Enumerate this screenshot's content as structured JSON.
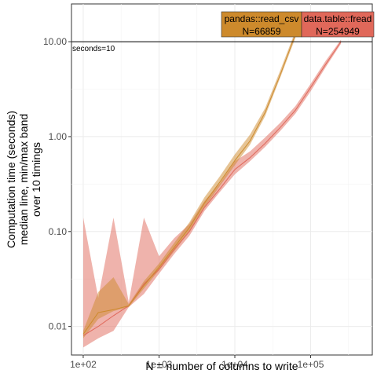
{
  "chart_data": {
    "type": "line",
    "xlabel": "N = number of columns to write",
    "ylabel_lines": [
      "Computation time (seconds)",
      "median line, min/max band",
      "over 10 timings"
    ],
    "xscale": "log10",
    "yscale": "log10",
    "xlim": [
      70,
      650000
    ],
    "ylim": [
      0.005,
      25
    ],
    "x_ticks": [
      {
        "value": 100,
        "label": "1e+02"
      },
      {
        "value": 1000,
        "label": "1e+03"
      },
      {
        "value": 10000,
        "label": "1e+04"
      },
      {
        "value": 100000,
        "label": "1e+05"
      }
    ],
    "y_ticks": [
      {
        "value": 0.01,
        "label": "0.01"
      },
      {
        "value": 0.1,
        "label": "0.10"
      },
      {
        "value": 1,
        "label": "1.00"
      },
      {
        "value": 10,
        "label": "10.00"
      }
    ],
    "grid": true,
    "reference_line": {
      "y": 10,
      "label": "seconds=10"
    },
    "series": [
      {
        "name": "pandas::read_csv",
        "color": "#cd8a2c",
        "x": [
          100,
          158,
          251,
          398,
          631,
          1000,
          1585,
          2512,
          3981,
          6310,
          10000,
          15849,
          25119,
          39811,
          63096
        ],
        "median": [
          0.0083,
          0.014,
          0.015,
          0.0165,
          0.027,
          0.042,
          0.068,
          0.11,
          0.2,
          0.33,
          0.56,
          0.9,
          1.8,
          4.5,
          12.0
        ],
        "min": [
          0.0075,
          0.012,
          0.0145,
          0.016,
          0.025,
          0.039,
          0.062,
          0.1,
          0.18,
          0.3,
          0.5,
          0.82,
          1.65,
          4.2,
          11.0
        ],
        "max": [
          0.009,
          0.023,
          0.033,
          0.0172,
          0.03,
          0.046,
          0.076,
          0.125,
          0.23,
          0.38,
          0.65,
          1.05,
          2.0,
          5.0,
          13.0
        ]
      },
      {
        "name": "data.table::fread",
        "color": "#e0685a",
        "x": [
          100,
          158,
          251,
          398,
          631,
          1000,
          1585,
          2512,
          3981,
          6310,
          10000,
          15849,
          25119,
          39811,
          63096,
          100000,
          158489,
          251189
        ],
        "median": [
          0.008,
          0.01,
          0.013,
          0.0165,
          0.028,
          0.04,
          0.065,
          0.1,
          0.18,
          0.28,
          0.45,
          0.6,
          0.85,
          1.25,
          1.9,
          3.3,
          5.8,
          10.0
        ],
        "min": [
          0.006,
          0.0075,
          0.009,
          0.016,
          0.022,
          0.036,
          0.058,
          0.09,
          0.165,
          0.26,
          0.4,
          0.55,
          0.78,
          1.15,
          1.75,
          3.0,
          5.4,
          9.5
        ],
        "max": [
          0.14,
          0.02,
          0.14,
          0.018,
          0.14,
          0.055,
          0.085,
          0.12,
          0.21,
          0.32,
          0.55,
          0.7,
          0.98,
          1.4,
          2.1,
          3.6,
          6.3,
          10.5
        ]
      }
    ],
    "annotations": [
      {
        "series": "pandas::read_csv",
        "line1": "pandas::read_csv",
        "line2": "N=66859",
        "color": "#cd8a2c"
      },
      {
        "series": "data.table::fread",
        "line1": "data.table::fread",
        "line2": "N=254949",
        "color": "#e0685a"
      }
    ]
  }
}
